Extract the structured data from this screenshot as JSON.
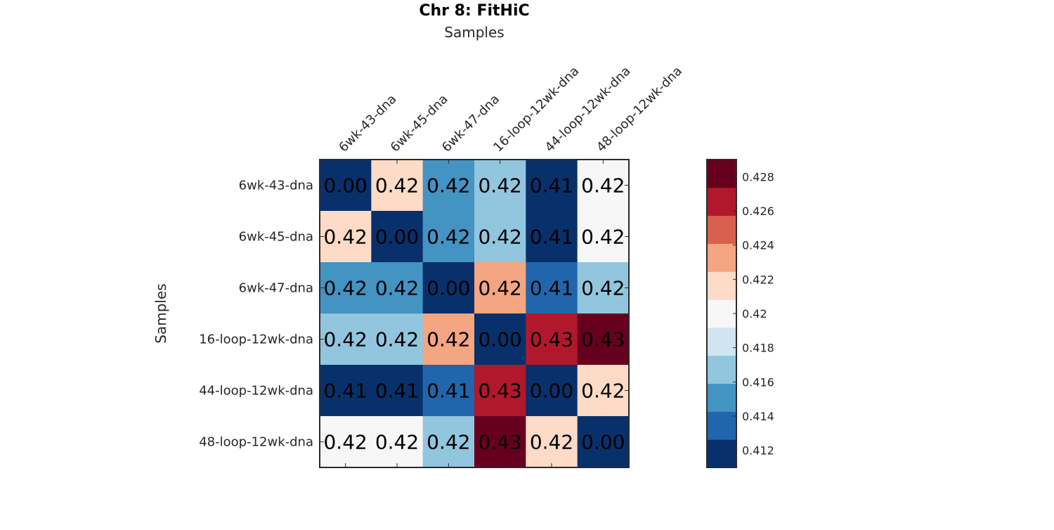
{
  "chart_data": {
    "type": "heatmap",
    "title": "Chr 8: FitHiC",
    "xlabel": "Samples",
    "ylabel": "Samples",
    "x_categories": [
      "6wk-43-dna",
      "6wk-45-dna",
      "6wk-47-dna",
      "16-loop-12wk-dna",
      "44-loop-12wk-dna",
      "48-loop-12wk-dna"
    ],
    "y_categories": [
      "6wk-43-dna",
      "6wk-45-dna",
      "6wk-47-dna",
      "16-loop-12wk-dna",
      "44-loop-12wk-dna",
      "48-loop-12wk-dna"
    ],
    "values": [
      [
        0.0,
        0.4218,
        0.4148,
        0.4165,
        0.411,
        0.4202
      ],
      [
        0.4218,
        0.0,
        0.4148,
        0.4165,
        0.411,
        0.4202
      ],
      [
        0.4148,
        0.4148,
        0.0,
        0.4234,
        0.4135,
        0.4165
      ],
      [
        0.4165,
        0.4165,
        0.4234,
        0.0,
        0.4265,
        0.4285
      ],
      [
        0.411,
        0.411,
        0.4135,
        0.4265,
        0.0,
        0.4218
      ],
      [
        0.4202,
        0.4202,
        0.4165,
        0.4285,
        0.4218,
        0.0
      ]
    ],
    "cell_labels": [
      [
        "0.00",
        "0.42",
        "0.42",
        "0.42",
        "0.41",
        "0.42"
      ],
      [
        "0.42",
        "0.00",
        "0.42",
        "0.42",
        "0.41",
        "0.42"
      ],
      [
        "0.42",
        "0.42",
        "0.00",
        "0.42",
        "0.41",
        "0.42"
      ],
      [
        "0.42",
        "0.42",
        "0.42",
        "0.00",
        "0.43",
        "0.43"
      ],
      [
        "0.41",
        "0.41",
        "0.41",
        "0.43",
        "0.00",
        "0.42"
      ],
      [
        "0.42",
        "0.42",
        "0.42",
        "0.43",
        "0.42",
        "0.00"
      ]
    ],
    "colorbar": {
      "range": [
        0.411,
        0.429
      ],
      "ticks": [
        0.412,
        0.414,
        0.416,
        0.418,
        0.42,
        0.422,
        0.424,
        0.426,
        0.428
      ],
      "tick_labels": [
        "0.412",
        "0.414",
        "0.416",
        "0.418",
        "0.42",
        "0.422",
        "0.424",
        "0.426",
        "0.428"
      ],
      "colors": [
        "#08306b",
        "#2166ac",
        "#4393c3",
        "#92c5de",
        "#d1e5f0",
        "#f7f7f7",
        "#fddbc7",
        "#f4a582",
        "#d6604d",
        "#b2182b",
        "#67001f"
      ]
    },
    "colormap": "RdBu (reversed), 11 discrete levels",
    "grid": false
  }
}
